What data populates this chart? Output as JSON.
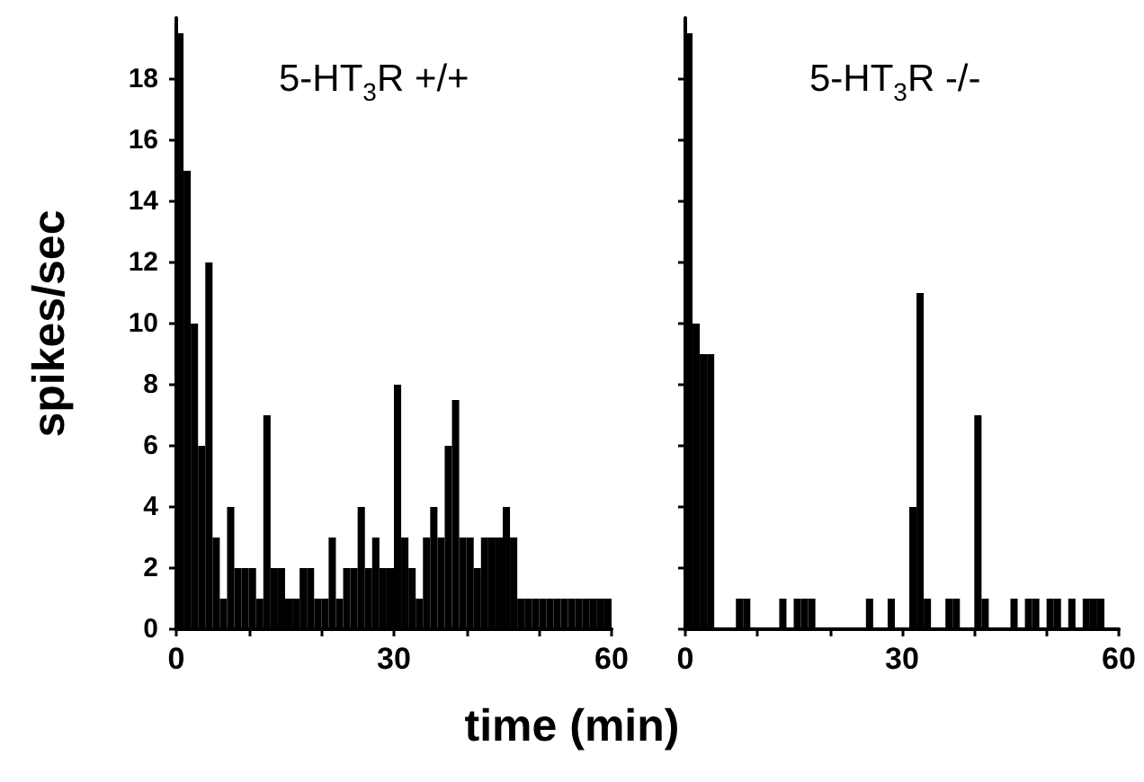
{
  "chart_data": [
    {
      "type": "histogram",
      "title": "5-HT$_{3}$R +/+",
      "xlabel": "time (min)",
      "ylabel": "spikes/sec",
      "bins": [
        0,
        1,
        2,
        3,
        4,
        5,
        6,
        7,
        8,
        9,
        10,
        11,
        12,
        13,
        14,
        15,
        16,
        17,
        18,
        19,
        20,
        21,
        22,
        23,
        24,
        25,
        26,
        27,
        28,
        29,
        30,
        31,
        32,
        33,
        34,
        35,
        36,
        37,
        38,
        39,
        40,
        41,
        42,
        43,
        44,
        45,
        46,
        47,
        48,
        49,
        50,
        51,
        52,
        53,
        54,
        55,
        56,
        57,
        58,
        59,
        60
      ],
      "values": [
        19.5,
        15,
        10,
        6,
        12,
        3,
        1,
        4,
        2,
        2,
        2,
        1,
        7,
        2,
        2,
        1,
        1,
        2,
        2,
        1,
        1,
        3,
        1,
        2,
        2,
        4,
        2,
        3,
        2,
        2,
        8,
        3,
        2,
        1,
        3,
        4,
        3,
        6,
        7.5,
        3,
        3,
        2,
        3,
        3,
        3,
        4,
        3,
        1,
        1,
        1,
        1,
        1,
        1,
        1,
        1,
        1,
        1,
        1,
        1,
        1
      ],
      "color": "#000000",
      "xlim": [
        0,
        60
      ],
      "ylim": [
        0,
        20
      ],
      "xticks": [
        0,
        {
          "value": 10,
          "label": null
        },
        {
          "value": 20,
          "label": null
        },
        30,
        {
          "value": 40,
          "label": null
        },
        {
          "value": 50,
          "label": null
        },
        60
      ],
      "yticks": [
        0,
        2,
        4,
        6,
        8,
        10,
        12,
        14,
        16,
        18
      ],
      "grid": false
    },
    {
      "type": "histogram",
      "title": "5-HT$_{3}$R -/-",
      "bins": [
        0,
        1,
        2,
        3,
        4,
        5,
        6,
        7,
        8,
        9,
        10,
        11,
        12,
        13,
        14,
        15,
        16,
        17,
        18,
        19,
        20,
        21,
        22,
        23,
        24,
        25,
        26,
        27,
        28,
        29,
        30,
        31,
        32,
        33,
        34,
        35,
        36,
        37,
        38,
        39,
        40,
        41,
        42,
        43,
        44,
        45,
        46,
        47,
        48,
        49,
        50,
        51,
        52,
        53,
        54,
        55,
        56,
        57,
        58,
        59,
        60
      ],
      "values": [
        19.5,
        10,
        9,
        9,
        0,
        0,
        0,
        1,
        1,
        0,
        0,
        0,
        0,
        1,
        0,
        1,
        1,
        1,
        0,
        0,
        0,
        0,
        0,
        0,
        0,
        1,
        0,
        0,
        1,
        0,
        0,
        4,
        11,
        1,
        0,
        0,
        1,
        1,
        0,
        0,
        7,
        1,
        0,
        0,
        0,
        1,
        0,
        1,
        1,
        0,
        1,
        1,
        0,
        1,
        0,
        1,
        1,
        1,
        0,
        0
      ],
      "color": "#000000",
      "xlim": [
        0,
        60
      ],
      "ylim": [
        0,
        20
      ],
      "xticks": [
        0,
        {
          "value": 10,
          "label": null
        },
        {
          "value": 20,
          "label": null
        },
        30,
        {
          "value": 40,
          "label": null
        },
        {
          "value": 50,
          "label": null
        },
        60
      ],
      "yticks": [
        {
          "value": 0,
          "label": null
        },
        {
          "value": 2,
          "label": null
        },
        {
          "value": 4,
          "label": null
        },
        {
          "value": 6,
          "label": null
        },
        {
          "value": 8,
          "label": null
        },
        {
          "value": 10,
          "label": null
        },
        {
          "value": 12,
          "label": null
        },
        {
          "value": 14,
          "label": null
        },
        {
          "value": 16,
          "label": null
        },
        {
          "value": 18,
          "label": null
        }
      ],
      "tick_labels": "x",
      "grid": false
    }
  ]
}
